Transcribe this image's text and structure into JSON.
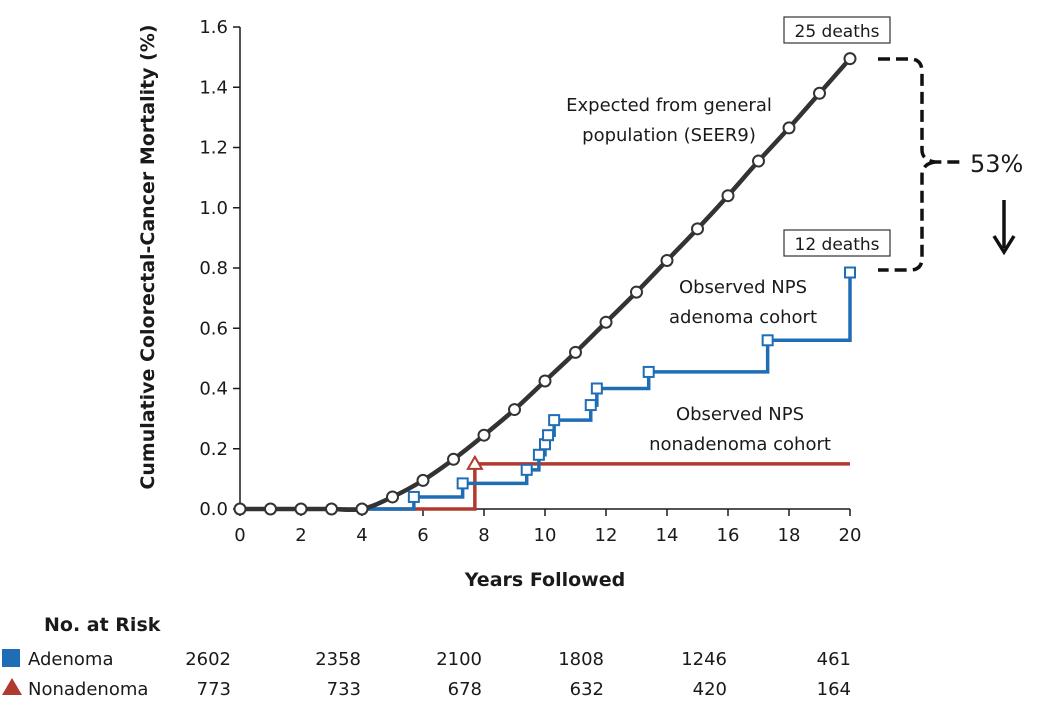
{
  "colors": {
    "expected": "#333333",
    "adenoma": "#1f6db5",
    "nonadenoma": "#b03a2e",
    "axis": "#1a1a1a",
    "callout_bracket": "#111111"
  },
  "chart_data": {
    "type": "line",
    "xlabel": "Years Followed",
    "ylabel": "Cumulative Colorectal-Cancer Mortality (%)",
    "xlim": [
      0,
      20
    ],
    "ylim": [
      0,
      1.6
    ],
    "x_ticks": [
      "0",
      "2",
      "4",
      "6",
      "8",
      "10",
      "12",
      "14",
      "16",
      "18",
      "20"
    ],
    "y_ticks": [
      "0.0",
      "0.2",
      "0.4",
      "0.6",
      "0.8",
      "1.0",
      "1.2",
      "1.4",
      "1.6"
    ],
    "series": [
      {
        "name": "Expected from general population (SEER9)",
        "kind": "smooth",
        "marker": "circle",
        "x": [
          0,
          1,
          2,
          3,
          4,
          5,
          6,
          7,
          8,
          9,
          10,
          11,
          12,
          13,
          14,
          15,
          16,
          17,
          18,
          19,
          20
        ],
        "y": [
          0.0,
          0.0,
          0.0,
          0.0,
          0.0,
          0.04,
          0.095,
          0.165,
          0.245,
          0.33,
          0.425,
          0.52,
          0.62,
          0.72,
          0.825,
          0.93,
          1.04,
          1.155,
          1.265,
          1.38,
          1.495
        ]
      },
      {
        "name": "Observed NPS adenoma cohort",
        "kind": "step",
        "marker": "square",
        "x": [
          0,
          5.7,
          7.3,
          9.4,
          9.8,
          10.0,
          10.1,
          10.3,
          11.5,
          11.7,
          13.4,
          17.3,
          20.0
        ],
        "y": [
          0.0,
          0.04,
          0.085,
          0.13,
          0.18,
          0.215,
          0.245,
          0.295,
          0.345,
          0.4,
          0.455,
          0.56,
          0.785
        ]
      },
      {
        "name": "Observed NPS nonadenoma cohort",
        "kind": "step",
        "marker": "triangle",
        "x": [
          0,
          7.7
        ],
        "y": [
          0.0,
          0.15
        ],
        "x_end": 20
      }
    ],
    "annotations": {
      "expected_label": [
        "Expected from general",
        "population (SEER9)"
      ],
      "adenoma_label": [
        "Observed NPS",
        "adenoma cohort"
      ],
      "nonadenoma_label": [
        "Observed NPS",
        "nonadenoma cohort"
      ],
      "expected_deaths": "25 deaths",
      "observed_deaths": "12 deaths",
      "reduction": "53%"
    },
    "risk_table": {
      "title": "No. at Risk",
      "rows": [
        {
          "label": "Adenoma",
          "marker": "square",
          "values": [
            "2602",
            "2358",
            "2100",
            "1808",
            "1246",
            "461"
          ]
        },
        {
          "label": "Nonadenoma",
          "marker": "triangle",
          "values": [
            "773",
            "733",
            "678",
            "632",
            "420",
            "164"
          ]
        }
      ]
    }
  }
}
